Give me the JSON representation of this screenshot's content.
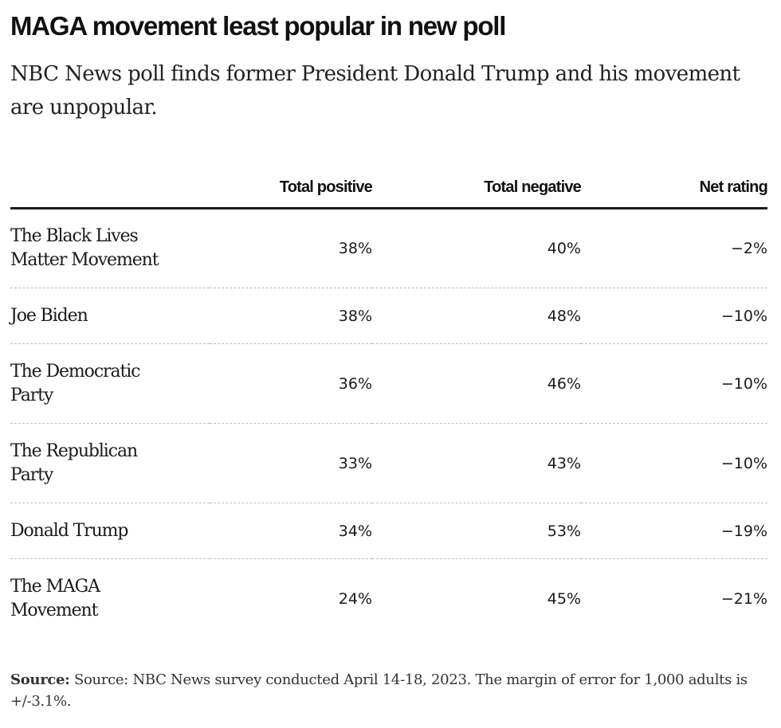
{
  "header": {
    "title": "MAGA movement least popular in new poll",
    "subtitle": "NBC News poll finds former President Donald Trump and his movement are unpopular."
  },
  "chart_data": {
    "type": "table",
    "columns": [
      "",
      "Total positive",
      "Total negative",
      "Net rating"
    ],
    "rows": [
      {
        "label": "The Black Lives Matter Movement",
        "positive": "38%",
        "negative": "40%",
        "net": "−2%"
      },
      {
        "label": "Joe Biden",
        "positive": "38%",
        "negative": "48%",
        "net": "−10%"
      },
      {
        "label": "The Democratic Party",
        "positive": "36%",
        "negative": "46%",
        "net": "−10%"
      },
      {
        "label": "The Republican Party",
        "positive": "33%",
        "negative": "43%",
        "net": "−10%"
      },
      {
        "label": "Donald Trump",
        "positive": "34%",
        "negative": "53%",
        "net": "−19%"
      },
      {
        "label": "The MAGA Movement",
        "positive": "24%",
        "negative": "45%",
        "net": "−21%"
      }
    ]
  },
  "footer": {
    "source_label": "Source:",
    "source_text": "Source: NBC News survey conducted April 14-18, 2023. The margin of error for 1,000 adults is +/-3.1%."
  }
}
